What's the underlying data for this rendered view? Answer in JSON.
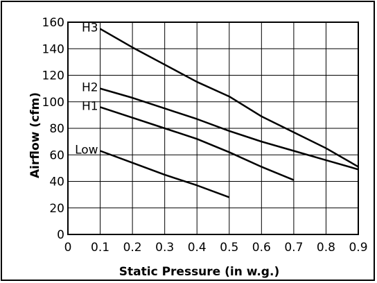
{
  "chart_data": {
    "type": "line",
    "xlabel": "Static Pressure (in w.g.)",
    "ylabel": "Airflow (cfm)",
    "xlim": [
      0,
      0.9
    ],
    "ylim": [
      0,
      160
    ],
    "x_ticks": [
      "0",
      "0.1",
      "0.2",
      "0.3",
      "0.4",
      "0.5",
      "0.6",
      "0.7",
      "0.8",
      "0.9"
    ],
    "y_ticks": [
      "0",
      "20",
      "40",
      "60",
      "80",
      "100",
      "120",
      "140",
      "160"
    ],
    "grid": true,
    "series": [
      {
        "name": "H3",
        "x": [
          0.1,
          0.2,
          0.3,
          0.4,
          0.5,
          0.6,
          0.7,
          0.8,
          0.9
        ],
        "y": [
          155,
          141,
          128,
          115,
          104,
          89,
          77,
          65,
          51
        ]
      },
      {
        "name": "H2",
        "x": [
          0.1,
          0.2,
          0.3,
          0.4,
          0.5,
          0.6,
          0.7,
          0.8,
          0.9
        ],
        "y": [
          110,
          103,
          95,
          87,
          78,
          70,
          63,
          56,
          49
        ]
      },
      {
        "name": "H1",
        "x": [
          0.1,
          0.2,
          0.3,
          0.4,
          0.5,
          0.6,
          0.7
        ],
        "y": [
          96,
          88,
          80,
          72,
          62,
          51,
          41
        ]
      },
      {
        "name": "Low",
        "x": [
          0.1,
          0.2,
          0.3,
          0.4,
          0.5
        ],
        "y": [
          63,
          54,
          45,
          37,
          28
        ]
      }
    ]
  }
}
